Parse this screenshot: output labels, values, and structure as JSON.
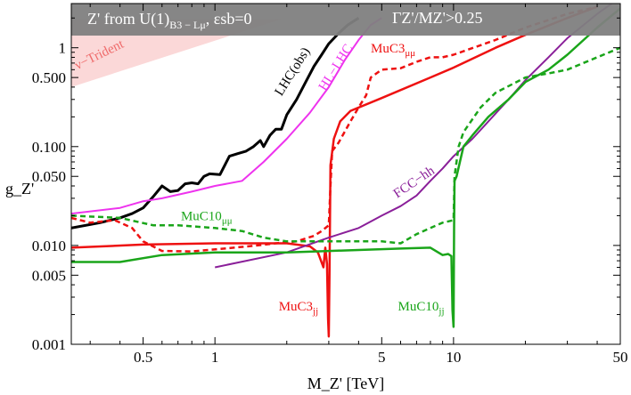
{
  "chart_data": {
    "type": "line",
    "title": "",
    "xlabel": "M_Z' [TeV]",
    "ylabel": "g_Z'",
    "x_scale": "log",
    "y_scale": "log",
    "xlim": [
      0.25,
      50
    ],
    "ylim": [
      0.001,
      2.8
    ],
    "x_ticks": [
      {
        "value": 0.5,
        "label": "0.5"
      },
      {
        "value": 1,
        "label": "1"
      },
      {
        "value": 5,
        "label": "5"
      },
      {
        "value": 10,
        "label": "10"
      },
      {
        "value": 50,
        "label": "50"
      }
    ],
    "y_ticks": [
      {
        "value": 0.001,
        "label": "0.001"
      },
      {
        "value": 0.005,
        "label": "0.005"
      },
      {
        "value": 0.01,
        "label": "0.010"
      },
      {
        "value": 0.05,
        "label": "0.050"
      },
      {
        "value": 0.1,
        "label": "0.100"
      },
      {
        "value": 0.5,
        "label": "0.500"
      },
      {
        "value": 1,
        "label": "1"
      }
    ],
    "banner": {
      "left_text": "Z' from U(1)",
      "left_sub": "B3 − Lμ",
      "left_tail": ",  εsb=0",
      "right_text": "ΓZ'/MZ'>0.25",
      "color": "#7f7f7f"
    },
    "regions": [
      {
        "name": "ν−Trident",
        "color": "#fbd8d8",
        "text_color": "#ef6b6b",
        "polygon": [
          [
            0.25,
            0.4
          ],
          [
            0.25,
            1.95
          ],
          [
            1.9,
            1.95
          ]
        ]
      }
    ],
    "series": [
      {
        "name": "LHC(obs)",
        "color": "#000000",
        "width": 3,
        "dash": "",
        "points": [
          [
            0.25,
            0.015
          ],
          [
            0.33,
            0.017
          ],
          [
            0.4,
            0.019
          ],
          [
            0.45,
            0.021
          ],
          [
            0.5,
            0.024
          ],
          [
            0.55,
            0.031
          ],
          [
            0.6,
            0.04
          ],
          [
            0.65,
            0.035
          ],
          [
            0.7,
            0.036
          ],
          [
            0.75,
            0.042
          ],
          [
            0.8,
            0.043
          ],
          [
            0.85,
            0.042
          ],
          [
            0.9,
            0.05
          ],
          [
            0.95,
            0.053
          ],
          [
            1.05,
            0.052
          ],
          [
            1.15,
            0.08
          ],
          [
            1.25,
            0.085
          ],
          [
            1.35,
            0.09
          ],
          [
            1.45,
            0.1
          ],
          [
            1.55,
            0.115
          ],
          [
            1.6,
            0.1
          ],
          [
            1.7,
            0.13
          ],
          [
            1.75,
            0.14
          ],
          [
            1.8,
            0.15
          ],
          [
            1.9,
            0.15
          ],
          [
            2.0,
            0.21
          ],
          [
            2.2,
            0.3
          ],
          [
            2.4,
            0.45
          ],
          [
            2.6,
            0.65
          ],
          [
            2.8,
            0.85
          ],
          [
            3.0,
            1.1
          ],
          [
            3.3,
            1.4
          ],
          [
            3.6,
            1.7
          ],
          [
            4.0,
            2.0
          ]
        ]
      },
      {
        "name": "HL−LHC",
        "color": "#ee33ee",
        "width": 2,
        "dash": "",
        "points": [
          [
            0.25,
            0.021
          ],
          [
            0.4,
            0.024
          ],
          [
            0.5,
            0.028
          ],
          [
            0.6,
            0.03
          ],
          [
            0.8,
            0.035
          ],
          [
            1.0,
            0.04
          ],
          [
            1.3,
            0.045
          ],
          [
            1.6,
            0.07
          ],
          [
            2.0,
            0.12
          ],
          [
            2.5,
            0.22
          ],
          [
            3.0,
            0.4
          ],
          [
            3.5,
            0.75
          ],
          [
            4.0,
            1.2
          ],
          [
            4.5,
            1.7
          ],
          [
            5.0,
            2.0
          ]
        ]
      },
      {
        "name": "MuC3",
        "color": "#ee1111",
        "width": 2.5,
        "dash": "",
        "points": [
          [
            0.25,
            0.0095
          ],
          [
            0.5,
            0.0102
          ],
          [
            1.0,
            0.0105
          ],
          [
            1.5,
            0.0105
          ],
          [
            2.0,
            0.0105
          ],
          [
            2.5,
            0.0098
          ],
          [
            2.7,
            0.0085
          ],
          [
            2.85,
            0.006
          ],
          [
            2.9,
            0.0095
          ],
          [
            2.95,
            0.0065
          ],
          [
            2.98,
            0.0018
          ],
          [
            3.0,
            0.0012
          ],
          [
            3.02,
            0.005
          ],
          [
            3.05,
            0.065
          ],
          [
            3.15,
            0.12
          ],
          [
            3.35,
            0.18
          ],
          [
            3.7,
            0.23
          ],
          [
            5.0,
            0.31
          ],
          [
            8.0,
            0.5
          ],
          [
            10.0,
            0.63
          ],
          [
            15.0,
            1.0
          ],
          [
            20.0,
            1.35
          ],
          [
            30.0,
            2.0
          ],
          [
            40.0,
            2.6
          ]
        ]
      },
      {
        "name": "MuC3_μμ",
        "color": "#ee1111",
        "width": 2.5,
        "dash": "6,4",
        "points": [
          [
            0.25,
            0.019
          ],
          [
            0.3,
            0.017
          ],
          [
            0.38,
            0.018
          ],
          [
            0.45,
            0.015
          ],
          [
            0.5,
            0.011
          ],
          [
            0.6,
            0.0088
          ],
          [
            0.8,
            0.0087
          ],
          [
            1.2,
            0.0095
          ],
          [
            1.5,
            0.01
          ],
          [
            1.8,
            0.0105
          ],
          [
            2.2,
            0.011
          ],
          [
            2.6,
            0.0125
          ],
          [
            2.8,
            0.014
          ],
          [
            3.0,
            0.016
          ],
          [
            3.05,
            0.04
          ],
          [
            3.1,
            0.09
          ],
          [
            3.3,
            0.11
          ],
          [
            3.7,
            0.18
          ],
          [
            4.0,
            0.25
          ],
          [
            4.3,
            0.33
          ],
          [
            4.5,
            0.5
          ],
          [
            5.0,
            0.6
          ],
          [
            6.0,
            0.62
          ],
          [
            7.0,
            0.72
          ],
          [
            8.0,
            0.8
          ],
          [
            9.0,
            0.8
          ],
          [
            10.0,
            0.85
          ],
          [
            15.0,
            1.2
          ],
          [
            20.0,
            1.6
          ],
          [
            30.0,
            2.2
          ],
          [
            40.0,
            2.6
          ]
        ]
      },
      {
        "name": "FCC−hh",
        "color": "#8a1f99",
        "width": 2,
        "dash": "",
        "points": [
          [
            1.0,
            0.006
          ],
          [
            2.0,
            0.0085
          ],
          [
            3.0,
            0.012
          ],
          [
            4.0,
            0.015
          ],
          [
            5.0,
            0.02
          ],
          [
            6.0,
            0.025
          ],
          [
            7.0,
            0.032
          ],
          [
            8.0,
            0.045
          ],
          [
            9.0,
            0.06
          ],
          [
            10.0,
            0.08
          ],
          [
            12.0,
            0.12
          ],
          [
            14.0,
            0.18
          ],
          [
            17.0,
            0.3
          ],
          [
            20.0,
            0.47
          ],
          [
            25.0,
            0.8
          ],
          [
            30.0,
            1.25
          ],
          [
            40.0,
            2.2
          ],
          [
            47.0,
            2.9
          ]
        ]
      },
      {
        "name": "MuC10",
        "color": "#1aa51a",
        "width": 2.5,
        "dash": "",
        "points": [
          [
            0.25,
            0.0068
          ],
          [
            0.4,
            0.0068
          ],
          [
            0.6,
            0.008
          ],
          [
            1.0,
            0.0085
          ],
          [
            2.0,
            0.0085
          ],
          [
            3.0,
            0.0088
          ],
          [
            4.0,
            0.009
          ],
          [
            6.0,
            0.0093
          ],
          [
            8.0,
            0.0095
          ],
          [
            9.0,
            0.008
          ],
          [
            9.5,
            0.0082
          ],
          [
            9.8,
            0.0078
          ],
          [
            9.9,
            0.0022
          ],
          [
            10.0,
            0.0015
          ],
          [
            10.05,
            0.015
          ],
          [
            10.1,
            0.045
          ],
          [
            10.3,
            0.05
          ],
          [
            11.0,
            0.1
          ],
          [
            12.0,
            0.13
          ],
          [
            14.0,
            0.2
          ],
          [
            17.0,
            0.3
          ],
          [
            20.0,
            0.45
          ],
          [
            25.0,
            0.6
          ],
          [
            30.0,
            0.85
          ],
          [
            40.0,
            1.6
          ],
          [
            50.0,
            2.5
          ]
        ]
      },
      {
        "name": "MuC10_μμ",
        "color": "#1aa51a",
        "width": 2.5,
        "dash": "6,4",
        "points": [
          [
            0.25,
            0.02
          ],
          [
            0.4,
            0.019
          ],
          [
            0.55,
            0.016
          ],
          [
            0.7,
            0.016
          ],
          [
            1.0,
            0.015
          ],
          [
            1.3,
            0.014
          ],
          [
            1.6,
            0.012
          ],
          [
            2.0,
            0.011
          ],
          [
            3.0,
            0.011
          ],
          [
            4.0,
            0.011
          ],
          [
            5.0,
            0.011
          ],
          [
            6.0,
            0.0105
          ],
          [
            7.0,
            0.013
          ],
          [
            8.0,
            0.015
          ],
          [
            9.0,
            0.017
          ],
          [
            10.0,
            0.018
          ],
          [
            10.1,
            0.05
          ],
          [
            10.5,
            0.1
          ],
          [
            11.0,
            0.14
          ],
          [
            13.0,
            0.25
          ],
          [
            15.0,
            0.35
          ],
          [
            20.0,
            0.5
          ],
          [
            25.0,
            0.55
          ],
          [
            30.0,
            0.6
          ],
          [
            40.0,
            0.8
          ],
          [
            50.0,
            1.0
          ]
        ]
      }
    ],
    "annotations": [
      {
        "text": "LHC(obs)",
        "color": "#000000",
        "x": 1.9,
        "y": 0.32,
        "angle": -58
      },
      {
        "text": "HL−LHC",
        "color": "#ee33ee",
        "x": 2.9,
        "y": 0.36,
        "angle": -58
      },
      {
        "text": "MuC3",
        "sub": "μμ",
        "color": "#ee1111",
        "x": 4.5,
        "y": 0.9,
        "angle": 0
      },
      {
        "text": "MuC10",
        "sub": "μμ",
        "color": "#1aa51a",
        "x": 0.72,
        "y": 0.018,
        "angle": 0
      },
      {
        "text": "FCC−hh",
        "color": "#8a1f99",
        "x": 5.8,
        "y": 0.03,
        "angle": -34
      },
      {
        "text": "MuC3",
        "sub": "jj",
        "color": "#ee1111",
        "x": 1.85,
        "y": 0.0022,
        "angle": 0
      },
      {
        "text": "MuC10",
        "sub": "jj",
        "color": "#1aa51a",
        "x": 5.85,
        "y": 0.0022,
        "angle": 0
      },
      {
        "text": "ν−Trident",
        "color": "#ef6b6b",
        "x": 0.265,
        "y": 0.6,
        "angle": -26
      }
    ]
  }
}
